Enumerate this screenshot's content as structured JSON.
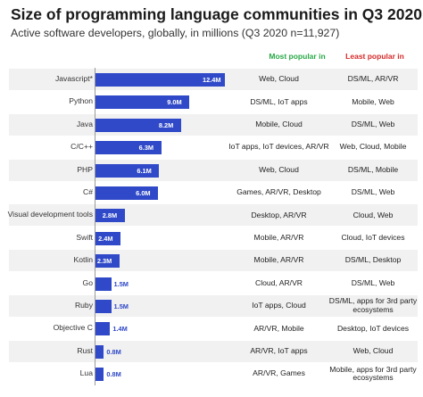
{
  "title": "Size of programming language communities in Q3 2020",
  "subtitle": "Active software developers, globally, in millions (Q3 2020 n=11,927)",
  "headers": {
    "most_popular": "Most popular in",
    "least_popular": "Least popular in"
  },
  "colors": {
    "bar": "#2f49c8",
    "most_popular_header": "#27a844",
    "least_popular_header": "#d62828"
  },
  "chart_data": {
    "type": "bar",
    "orientation": "horizontal",
    "title": "Size of programming language communities in Q3 2020",
    "subtitle": "Active software developers, globally, in millions (Q3 2020 n=11,927)",
    "xlabel": "",
    "ylabel": "",
    "xlim": [
      0,
      12.4
    ],
    "categories": [
      "Javascript*",
      "Python",
      "Java",
      "C/C++",
      "PHP",
      "C#",
      "Visual development tools",
      "Swift",
      "Kotlin",
      "Go",
      "Ruby",
      "Objective C",
      "Rust",
      "Lua"
    ],
    "values": [
      12.4,
      9.0,
      8.2,
      6.3,
      6.1,
      6.0,
      2.8,
      2.4,
      2.3,
      1.5,
      1.5,
      1.4,
      0.8,
      0.8
    ],
    "labels": [
      "12.4M",
      "9.0M",
      "8.2M",
      "6.3M",
      "6.1M",
      "6.0M",
      "2.8M",
      "2.4M",
      "2.3M",
      "1.5M",
      "1.5M",
      "1.4M",
      "0.8M",
      "0.8M"
    ],
    "most_popular_in": [
      "Web, Cloud",
      "DS/ML, IoT apps",
      "Mobile, Cloud",
      "IoT apps, IoT devices, AR/VR",
      "Web, Cloud",
      "Games, AR/VR, Desktop",
      "Desktop, AR/VR",
      "Mobile, AR/VR",
      "Mobile, AR/VR",
      "Cloud, AR/VR",
      "IoT apps, Cloud",
      "AR/VR, Mobile",
      "AR/VR, IoT apps",
      "AR/VR, Games"
    ],
    "least_popular_in": [
      "DS/ML, AR/VR",
      "Mobile, Web",
      "DS/ML, Web",
      "Web, Cloud, Mobile",
      "DS/ML, Mobile",
      "DS/ML, Web",
      "Cloud, Web",
      "Cloud, IoT devices",
      "DS/ML, Desktop",
      "DS/ML, Web",
      "DS/ML, apps for 3rd party ecosystems",
      "Desktop, IoT devices",
      "Web, Cloud",
      "Mobile, apps for 3rd party ecosystems"
    ],
    "grid": false,
    "legend": "none"
  }
}
